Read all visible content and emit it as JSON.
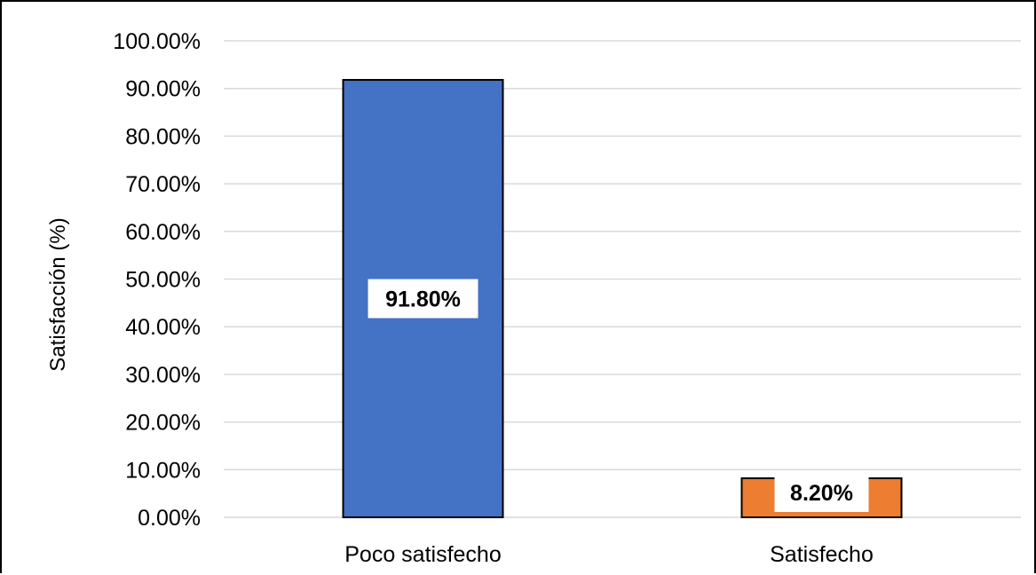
{
  "chart_data": {
    "type": "bar",
    "categories": [
      "Poco satisfecho",
      "Satisfecho"
    ],
    "values": [
      91.8,
      8.2
    ],
    "value_labels": [
      "91.80%",
      "8.20%"
    ],
    "colors": [
      "#4472C4",
      "#ED7D31"
    ],
    "title": "",
    "xlabel": "",
    "ylabel": "Satisfacción (%)",
    "ylim": [
      0,
      100
    ],
    "yticks": [
      0,
      10,
      20,
      30,
      40,
      50,
      60,
      70,
      80,
      90,
      100
    ],
    "ytick_labels": [
      "0.00%",
      "10.00%",
      "20.00%",
      "30.00%",
      "40.00%",
      "50.00%",
      "60.00%",
      "70.00%",
      "80.00%",
      "90.00%",
      "100.00%"
    ],
    "grid": true,
    "grid_color": "#D9D9D9",
    "legend": "none"
  }
}
